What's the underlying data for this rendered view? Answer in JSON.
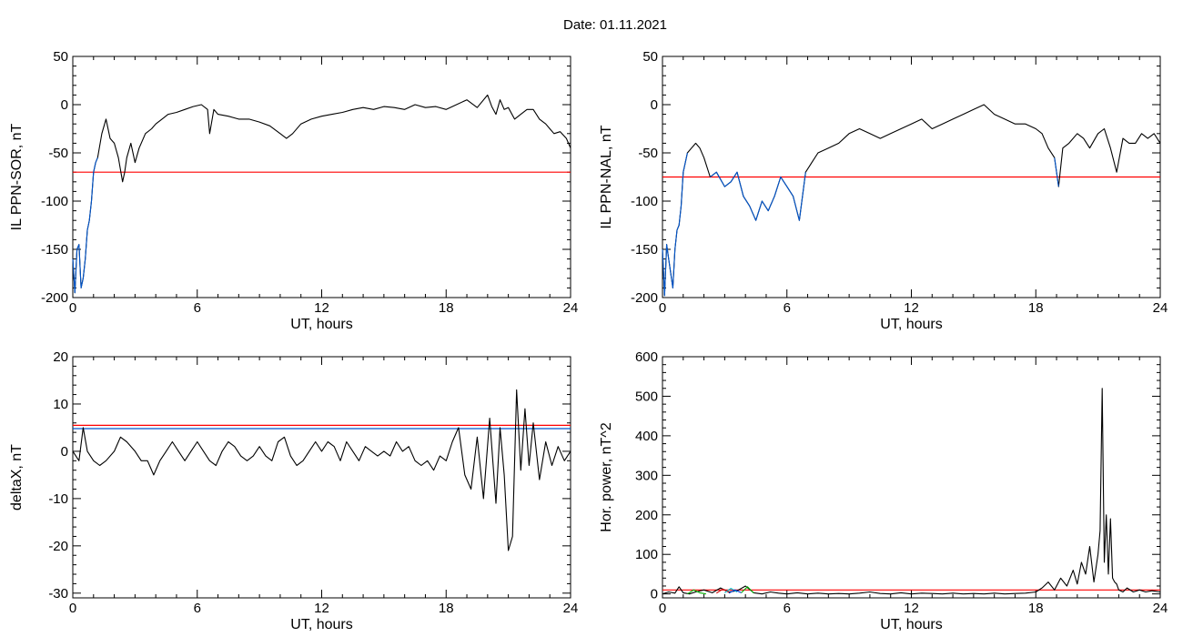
{
  "figure": {
    "title": "Date:  01.11.2021"
  },
  "chart_data": [
    {
      "id": "ppn-sor",
      "type": "line",
      "title": "",
      "xlabel": "UT, hours",
      "ylabel": "IL PPN-SOR, nT",
      "xlim": [
        0,
        24
      ],
      "ylim": [
        -200,
        50
      ],
      "xticks": [
        0,
        6,
        12,
        18,
        24
      ],
      "yticks": [
        -200,
        -150,
        -100,
        -50,
        0,
        50
      ],
      "threshold": {
        "value": -70,
        "color": "#ff0000"
      },
      "series": [
        {
          "color": "#000000",
          "x": [
            0,
            0.1,
            0.2,
            0.3,
            0.4,
            0.5,
            0.6,
            0.7,
            0.8,
            0.9,
            1.0,
            1.1,
            1.2,
            1.4,
            1.6,
            1.8,
            2.0,
            2.2,
            2.4,
            2.5,
            2.6,
            2.8,
            3.0,
            3.2,
            3.5,
            3.8,
            4.0,
            4.3,
            4.6,
            5.0,
            5.4,
            5.8,
            6.2,
            6.5,
            6.6,
            6.8,
            7.0,
            7.5,
            8.0,
            8.5,
            9.0,
            9.5,
            10.0,
            10.3,
            10.6,
            11.0,
            11.5,
            12.0,
            12.5,
            13.0,
            13.5,
            14.0,
            14.5,
            15.0,
            15.5,
            16.0,
            16.5,
            17.0,
            17.5,
            18.0,
            18.5,
            19.0,
            19.5,
            20.0,
            20.2,
            20.4,
            20.6,
            20.8,
            21.0,
            21.3,
            21.6,
            21.9,
            22.2,
            22.5,
            22.8,
            23.0,
            23.2,
            23.5,
            23.8,
            24.0
          ],
          "y": [
            -160,
            -195,
            -150,
            -145,
            -190,
            -180,
            -160,
            -130,
            -120,
            -100,
            -70,
            -60,
            -55,
            -30,
            -15,
            -35,
            -40,
            -55,
            -80,
            -70,
            -55,
            -40,
            -60,
            -45,
            -30,
            -25,
            -20,
            -15,
            -10,
            -8,
            -5,
            -2,
            0,
            -5,
            -30,
            -5,
            -10,
            -12,
            -15,
            -15,
            -18,
            -22,
            -30,
            -35,
            -30,
            -20,
            -15,
            -12,
            -10,
            -8,
            -5,
            -3,
            -5,
            -2,
            -3,
            -5,
            0,
            -3,
            -2,
            -5,
            0,
            5,
            -3,
            10,
            -2,
            -10,
            5,
            -5,
            -3,
            -15,
            -10,
            -5,
            -5,
            -15,
            -20,
            -25,
            -30,
            -28,
            -35,
            -45
          ]
        },
        {
          "color": "#0055cc",
          "x": [
            0,
            0.1,
            0.2,
            0.3,
            0.4,
            0.5,
            0.6,
            0.7,
            0.8,
            0.9,
            1.0,
            1.1,
            1.2
          ],
          "y": [
            -160,
            -195,
            -150,
            -145,
            -190,
            -180,
            -160,
            -130,
            -120,
            -100,
            -70,
            -60,
            -55
          ]
        }
      ]
    },
    {
      "id": "ppn-nal",
      "type": "line",
      "title": "",
      "xlabel": "UT, hours",
      "ylabel": "IL PPN-NAL, nT",
      "xlim": [
        0,
        24
      ],
      "ylim": [
        -200,
        50
      ],
      "xticks": [
        0,
        6,
        12,
        18,
        24
      ],
      "yticks": [
        -200,
        -150,
        -100,
        -50,
        0,
        50
      ],
      "threshold": {
        "value": -75,
        "color": "#ff0000"
      },
      "series": [
        {
          "color": "#000000",
          "x": [
            0,
            0.1,
            0.2,
            0.3,
            0.4,
            0.5,
            0.6,
            0.7,
            0.8,
            0.9,
            1.0,
            1.2,
            1.4,
            1.6,
            1.8,
            2.0,
            2.3,
            2.6,
            3.0,
            3.3,
            3.6,
            3.9,
            4.2,
            4.5,
            4.8,
            5.1,
            5.4,
            5.7,
            6.0,
            6.3,
            6.6,
            6.9,
            7.2,
            7.5,
            8.0,
            8.5,
            9.0,
            9.5,
            10.0,
            10.5,
            11.0,
            11.5,
            12.0,
            12.5,
            13.0,
            13.5,
            14.0,
            14.5,
            15.0,
            15.5,
            16.0,
            16.5,
            17.0,
            17.5,
            18.0,
            18.3,
            18.6,
            18.9,
            19.1,
            19.3,
            19.6,
            20.0,
            20.3,
            20.6,
            21.0,
            21.3,
            21.6,
            21.9,
            22.2,
            22.5,
            22.8,
            23.1,
            23.4,
            23.7,
            24.0
          ],
          "y": [
            -150,
            -198,
            -145,
            -160,
            -175,
            -190,
            -150,
            -130,
            -125,
            -105,
            -70,
            -50,
            -45,
            -40,
            -45,
            -55,
            -75,
            -70,
            -85,
            -80,
            -70,
            -95,
            -105,
            -120,
            -100,
            -110,
            -95,
            -75,
            -85,
            -95,
            -120,
            -70,
            -60,
            -50,
            -45,
            -40,
            -30,
            -25,
            -30,
            -35,
            -30,
            -25,
            -20,
            -15,
            -25,
            -20,
            -15,
            -10,
            -5,
            0,
            -10,
            -15,
            -20,
            -20,
            -25,
            -30,
            -45,
            -55,
            -85,
            -45,
            -40,
            -30,
            -35,
            -45,
            -30,
            -25,
            -45,
            -70,
            -35,
            -40,
            -40,
            -30,
            -35,
            -30,
            -40
          ]
        },
        {
          "color": "#0055cc",
          "x": [
            0,
            0.1,
            0.2,
            0.3,
            0.4,
            0.5,
            0.6,
            0.7,
            0.8,
            0.9,
            1.0,
            1.2
          ],
          "y": [
            -150,
            -198,
            -145,
            -160,
            -175,
            -190,
            -150,
            -130,
            -125,
            -105,
            -70,
            -50
          ]
        },
        {
          "color": "#0055cc",
          "x": [
            2.3,
            2.6,
            3.0,
            3.3,
            3.6,
            3.9,
            4.2,
            4.5,
            4.8,
            5.1,
            5.4,
            5.7,
            6.0,
            6.3,
            6.6,
            6.9
          ],
          "y": [
            -75,
            -70,
            -85,
            -80,
            -70,
            -95,
            -105,
            -120,
            -100,
            -110,
            -95,
            -75,
            -85,
            -95,
            -120,
            -70
          ]
        },
        {
          "color": "#0055cc",
          "x": [
            18.9,
            19.1
          ],
          "y": [
            -55,
            -85
          ]
        }
      ]
    },
    {
      "id": "deltax",
      "type": "line",
      "title": "",
      "xlabel": "UT, hours",
      "ylabel": "deltaX, nT",
      "xlim": [
        0,
        24
      ],
      "ylim": [
        -31,
        20
      ],
      "xticks": [
        0,
        6,
        12,
        18,
        24
      ],
      "yticks": [
        -30,
        -20,
        -10,
        0,
        10,
        20
      ],
      "thresholds": [
        {
          "value": 5.5,
          "color": "#ff0000"
        },
        {
          "value": 4.8,
          "color": "#0055cc"
        }
      ],
      "series": [
        {
          "color": "#000000",
          "x": [
            0,
            0.3,
            0.5,
            0.7,
            1.0,
            1.3,
            1.6,
            2.0,
            2.3,
            2.6,
            3.0,
            3.3,
            3.6,
            3.9,
            4.2,
            4.5,
            4.8,
            5.1,
            5.4,
            5.7,
            6.0,
            6.3,
            6.6,
            6.9,
            7.2,
            7.5,
            7.8,
            8.1,
            8.4,
            8.7,
            9.0,
            9.3,
            9.6,
            9.9,
            10.2,
            10.5,
            10.8,
            11.1,
            11.4,
            11.7,
            12.0,
            12.3,
            12.6,
            12.9,
            13.2,
            13.5,
            13.8,
            14.1,
            14.4,
            14.7,
            15.0,
            15.3,
            15.6,
            15.9,
            16.2,
            16.5,
            16.8,
            17.1,
            17.4,
            17.7,
            18.0,
            18.3,
            18.6,
            18.9,
            19.2,
            19.5,
            19.8,
            20.1,
            20.4,
            20.6,
            20.8,
            21.0,
            21.2,
            21.4,
            21.6,
            21.8,
            22.0,
            22.2,
            22.5,
            22.8,
            23.1,
            23.4,
            23.7,
            24.0
          ],
          "y": [
            0,
            -2,
            5,
            0,
            -2,
            -3,
            -2,
            0,
            3,
            2,
            0,
            -2,
            -2,
            -5,
            -2,
            0,
            2,
            0,
            -2,
            0,
            2,
            0,
            -2,
            -3,
            0,
            2,
            1,
            -1,
            -2,
            -1,
            1,
            -1,
            -2,
            2,
            3,
            -1,
            -3,
            -2,
            0,
            2,
            0,
            2,
            1,
            -2,
            2,
            0,
            -2,
            1,
            0,
            -1,
            0,
            -1,
            2,
            0,
            1,
            -2,
            -3,
            -2,
            -4,
            -1,
            -2,
            2,
            5,
            -5,
            -8,
            3,
            -10,
            7,
            -11,
            5,
            -5,
            -21,
            -18,
            13,
            -4,
            9,
            -3,
            6,
            -6,
            2,
            -3,
            1,
            -2,
            0
          ]
        }
      ]
    },
    {
      "id": "hor-power",
      "type": "line",
      "title": "",
      "xlabel": "UT, hours",
      "ylabel": "Hor. power, nT^2",
      "xlim": [
        0,
        24
      ],
      "ylim": [
        -10,
        600
      ],
      "xticks": [
        0,
        6,
        12,
        18,
        24
      ],
      "yticks": [
        0,
        100,
        200,
        300,
        400,
        500,
        600
      ],
      "threshold": {
        "value": 10,
        "color": "#ff0000"
      },
      "series": [
        {
          "color": "#000000",
          "x": [
            0,
            0.3,
            0.6,
            0.8,
            1.0,
            1.3,
            1.6,
            2.0,
            2.4,
            2.8,
            3.2,
            3.6,
            4.0,
            4.4,
            4.8,
            5.2,
            5.6,
            6.0,
            6.5,
            7.0,
            7.5,
            8.0,
            8.5,
            9.0,
            9.5,
            10.0,
            10.5,
            11.0,
            11.5,
            12.0,
            12.5,
            13.0,
            13.5,
            14.0,
            14.5,
            15.0,
            15.5,
            16.0,
            16.5,
            17.0,
            17.5,
            18.0,
            18.3,
            18.6,
            18.9,
            19.2,
            19.5,
            19.8,
            20.0,
            20.2,
            20.4,
            20.6,
            20.8,
            21.0,
            21.1,
            21.2,
            21.3,
            21.4,
            21.5,
            21.6,
            21.7,
            21.8,
            21.9,
            22.0,
            22.2,
            22.4,
            22.7,
            23.0,
            23.3,
            23.6,
            24.0
          ],
          "y": [
            0,
            5,
            2,
            18,
            3,
            0,
            5,
            10,
            3,
            15,
            5,
            8,
            20,
            3,
            0,
            5,
            2,
            0,
            3,
            0,
            2,
            0,
            1,
            0,
            2,
            5,
            1,
            0,
            3,
            0,
            2,
            1,
            0,
            2,
            0,
            1,
            0,
            2,
            0,
            1,
            2,
            5,
            15,
            30,
            10,
            40,
            20,
            60,
            25,
            80,
            50,
            120,
            30,
            100,
            160,
            520,
            80,
            200,
            50,
            190,
            40,
            30,
            25,
            10,
            5,
            15,
            5,
            10,
            5,
            8,
            5
          ]
        },
        {
          "color": "#00aa00",
          "x": [
            1.2,
            1.5,
            1.8,
            2.1
          ],
          "y": [
            0,
            10,
            3,
            0
          ]
        },
        {
          "color": "#cc0000",
          "x": [
            2.6,
            2.9,
            3.2
          ],
          "y": [
            2,
            12,
            4
          ]
        },
        {
          "color": "#00bbcc",
          "x": [
            3.0,
            3.3,
            3.6
          ],
          "y": [
            3,
            14,
            5
          ]
        },
        {
          "color": "#0033cc",
          "x": [
            3.2,
            3.5,
            3.8
          ],
          "y": [
            2,
            10,
            3
          ]
        },
        {
          "color": "#00aa00",
          "x": [
            3.8,
            4.1,
            4.4
          ],
          "y": [
            3,
            18,
            2
          ]
        }
      ]
    }
  ]
}
